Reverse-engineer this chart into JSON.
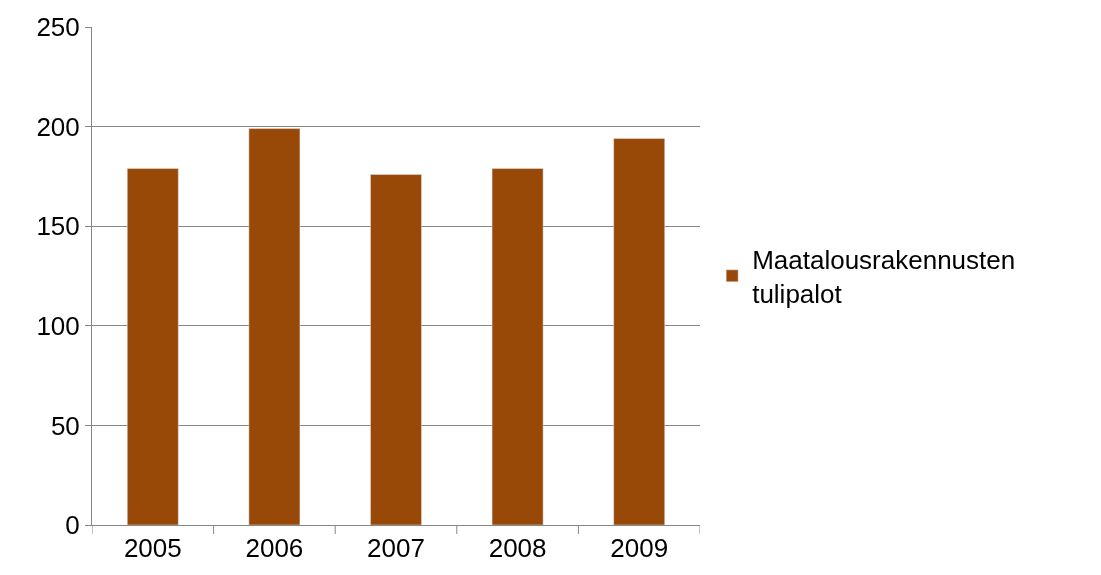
{
  "chart_data": {
    "type": "bar",
    "categories": [
      "2005",
      "2006",
      "2007",
      "2008",
      "2009"
    ],
    "series": [
      {
        "name": "Maatalousrakennusten tulipalot",
        "color": "#984807",
        "values": [
          179,
          199,
          176,
          179,
          194
        ]
      }
    ],
    "ylim": [
      0,
      250
    ],
    "yticks": [
      0,
      50,
      100,
      150,
      200,
      250
    ],
    "grid": "y",
    "legend": "right"
  }
}
